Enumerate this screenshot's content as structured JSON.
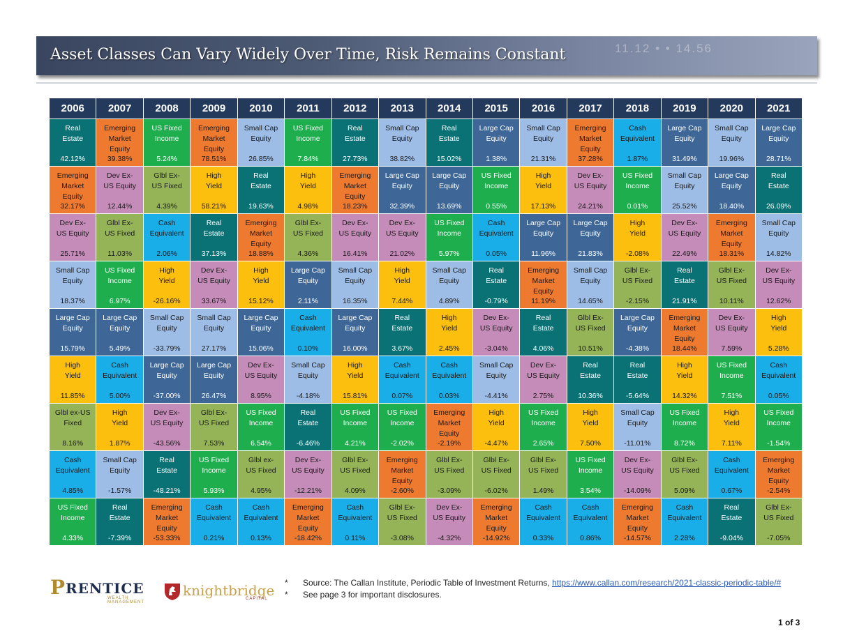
{
  "header": {
    "title": "Asset Classes Can Vary Widely Over Time,  Risk Remains Constant",
    "ticker_text": "11.12 • • 14.56"
  },
  "palette": {
    "Real Estate": {
      "bg": "#0a7275",
      "fg": "#ffffff"
    },
    "Emerging Market Equity": {
      "bg": "#ee7a30",
      "fg": "#1a1a1a"
    },
    "US Fixed Income": {
      "bg": "#1fae4e",
      "fg": "#ffffff"
    },
    "Small Cap Equity": {
      "bg": "#9dbde6",
      "fg": "#1a1a1a"
    },
    "Large Cap Equity": {
      "bg": "#3e6797",
      "fg": "#ffffff"
    },
    "Cash Equivalent": {
      "bg": "#19aee8",
      "fg": "#1a1a1a"
    },
    "High Yield": {
      "bg": "#fcbf0d",
      "fg": "#1a1a1a"
    },
    "Dev Ex-US Equity": {
      "bg": "#c58bb9",
      "fg": "#1a1a1a"
    },
    "Glbl Ex-US Fixed": {
      "bg": "#94b457",
      "fg": "#1a1a1a"
    }
  },
  "table": {
    "years": [
      "2006",
      "2007",
      "2008",
      "2009",
      "2010",
      "2011",
      "2012",
      "2013",
      "2014",
      "2015",
      "2016",
      "2017",
      "2018",
      "2019",
      "2020",
      "2021"
    ],
    "rows": [
      [
        {
          "key": "Real Estate",
          "label": "Real\nEstate",
          "value": "42.12%"
        },
        {
          "key": "Emerging Market Equity",
          "label": "Emerging\nMarket\nEquity",
          "value": "39.38%"
        },
        {
          "key": "US Fixed Income",
          "label": "US Fixed\nIncome",
          "value": "5.24%"
        },
        {
          "key": "Emerging Market Equity",
          "label": "Emerging\nMarket\nEquity",
          "value": "78.51%"
        },
        {
          "key": "Small Cap Equity",
          "label": "Small Cap\nEquity",
          "value": "26.85%"
        },
        {
          "key": "US Fixed Income",
          "label": "US Fixed\nIncome",
          "value": "7.84%"
        },
        {
          "key": "Real Estate",
          "label": "Real\nEstate",
          "value": "27.73%"
        },
        {
          "key": "Small Cap Equity",
          "label": "Small Cap\nEquity",
          "value": "38.82%"
        },
        {
          "key": "Real Estate",
          "label": "Real\nEstate",
          "value": "15.02%"
        },
        {
          "key": "Large Cap Equity",
          "label": "Large Cap\nEquity",
          "value": "1.38%"
        },
        {
          "key": "Small Cap Equity",
          "label": "Small Cap\nEquity",
          "value": "21.31%"
        },
        {
          "key": "Emerging Market Equity",
          "label": "Emerging\nMarket\nEquity",
          "value": "37.28%"
        },
        {
          "key": "Cash Equivalent",
          "label": "Cash\nEquivalent",
          "value": "1.87%"
        },
        {
          "key": "Large Cap Equity",
          "label": "Large Cap\nEquity",
          "value": "31.49%"
        },
        {
          "key": "Small Cap Equity",
          "label": "Small Cap\nEquity",
          "value": "19.96%"
        },
        {
          "key": "Large Cap Equity",
          "label": "Large Cap\nEquity",
          "value": "28.71%"
        }
      ],
      [
        {
          "key": "Emerging Market Equity",
          "label": "Emerging\nMarket\nEquity",
          "value": "32.17%"
        },
        {
          "key": "Dev Ex-US Equity",
          "label": "Dev Ex-\nUS Equity",
          "value": "12.44%"
        },
        {
          "key": "Glbl Ex-US Fixed",
          "label": "Glbl Ex-\nUS Fixed",
          "value": "4.39%"
        },
        {
          "key": "High Yield",
          "label": "High\nYield",
          "value": "58.21%"
        },
        {
          "key": "Real Estate",
          "label": "Real\nEstate",
          "value": "19.63%"
        },
        {
          "key": "High Yield",
          "label": "High\nYield",
          "value": "4.98%"
        },
        {
          "key": "Emerging Market Equity",
          "label": "Emerging\nMarket\nEquity",
          "value": "18.23%"
        },
        {
          "key": "Large Cap Equity",
          "label": "Large Cap\nEquity",
          "value": "32.39%"
        },
        {
          "key": "Large Cap Equity",
          "label": "Large Cap\nEquity",
          "value": "13.69%"
        },
        {
          "key": "US Fixed Income",
          "label": "US Fixed\nIncome",
          "value": "0.55%"
        },
        {
          "key": "High Yield",
          "label": "High\nYield",
          "value": "17.13%"
        },
        {
          "key": "Dev Ex-US Equity",
          "label": "Dev Ex-\nUS Equity",
          "value": "24.21%"
        },
        {
          "key": "US Fixed Income",
          "label": "US Fixed\nIncome",
          "value": "0.01%"
        },
        {
          "key": "Small Cap Equity",
          "label": "Small Cap\nEquity",
          "value": "25.52%"
        },
        {
          "key": "Large Cap Equity",
          "label": "Large Cap\nEquity",
          "value": "18.40%"
        },
        {
          "key": "Real Estate",
          "label": "Real\nEstate",
          "value": "26.09%"
        }
      ],
      [
        {
          "key": "Dev Ex-US Equity",
          "label": "Dev Ex-\nUS Equity",
          "value": "25.71%"
        },
        {
          "key": "Glbl Ex-US Fixed",
          "label": "Glbl Ex-\nUS Fixed",
          "value": "11.03%"
        },
        {
          "key": "Cash Equivalent",
          "label": "Cash\nEquivalent",
          "value": "2.06%"
        },
        {
          "key": "Real Estate",
          "label": "Real\nEstate",
          "value": "37.13%"
        },
        {
          "key": "Emerging Market Equity",
          "label": "Emerging\nMarket\nEquity",
          "value": "18.88%"
        },
        {
          "key": "Glbl Ex-US Fixed",
          "label": "Glbl Ex-\nUS Fixed",
          "value": "4.36%"
        },
        {
          "key": "Dev Ex-US Equity",
          "label": "Dev Ex-\nUS Equity",
          "value": "16.41%"
        },
        {
          "key": "Dev Ex-US Equity",
          "label": "Dev Ex-\nUS Equity",
          "value": "21.02%"
        },
        {
          "key": "US Fixed Income",
          "label": "US Fixed\nIncome",
          "value": "5.97%"
        },
        {
          "key": "Cash Equivalent",
          "label": "Cash\nEquivalent",
          "value": "0.05%"
        },
        {
          "key": "Large Cap Equity",
          "label": "Large Cap\nEquity",
          "value": "11.96%"
        },
        {
          "key": "Large Cap Equity",
          "label": "Large Cap\nEquity",
          "value": "21.83%"
        },
        {
          "key": "High Yield",
          "label": "High\nYield",
          "value": "-2.08%"
        },
        {
          "key": "Dev Ex-US Equity",
          "label": "Dev Ex-\nUS Equity",
          "value": "22.49%"
        },
        {
          "key": "Emerging Market Equity",
          "label": "Emerging\nMarket\nEquity",
          "value": "18.31%"
        },
        {
          "key": "Small Cap Equity",
          "label": "Small Cap\nEquity",
          "value": "14.82%"
        }
      ],
      [
        {
          "key": "Small Cap Equity",
          "label": "Small Cap\nEquity",
          "value": "18.37%"
        },
        {
          "key": "US Fixed Income",
          "label": "US Fixed\nIncome",
          "value": "6.97%"
        },
        {
          "key": "High Yield",
          "label": "High\nYield",
          "value": "-26.16%"
        },
        {
          "key": "Dev Ex-US Equity",
          "label": "Dev Ex-\nUS Equity",
          "value": "33.67%"
        },
        {
          "key": "High Yield",
          "label": "High\nYield",
          "value": "15.12%"
        },
        {
          "key": "Large Cap Equity",
          "label": "Large Cap\nEquity",
          "value": "2.11%"
        },
        {
          "key": "Small Cap Equity",
          "label": "Small Cap\nEquity",
          "value": "16.35%"
        },
        {
          "key": "High Yield",
          "label": "High\nYield",
          "value": "7.44%"
        },
        {
          "key": "Small Cap Equity",
          "label": "Small Cap\nEquity",
          "value": "4.89%"
        },
        {
          "key": "Real Estate",
          "label": "Real\nEstate",
          "value": "-0.79%"
        },
        {
          "key": "Emerging Market Equity",
          "label": "Emerging\nMarket\nEquity",
          "value": "11.19%"
        },
        {
          "key": "Small Cap Equity",
          "label": "Small Cap\nEquity",
          "value": "14.65%"
        },
        {
          "key": "Glbl Ex-US Fixed",
          "label": "Glbl Ex-\nUS Fixed",
          "value": "-2.15%"
        },
        {
          "key": "Real Estate",
          "label": "Real\nEstate",
          "value": "21.91%"
        },
        {
          "key": "Glbl Ex-US Fixed",
          "label": "Glbl Ex-\nUS Fixed",
          "value": "10.11%"
        },
        {
          "key": "Dev Ex-US Equity",
          "label": "Dev Ex-\nUS Equity",
          "value": "12.62%"
        }
      ],
      [
        {
          "key": "Large Cap Equity",
          "label": "Large Cap\nEquity",
          "value": "15.79%"
        },
        {
          "key": "Large Cap Equity",
          "label": "Large Cap\nEquity",
          "value": "5.49%"
        },
        {
          "key": "Small Cap Equity",
          "label": "Small Cap\nEquity",
          "value": "-33.79%"
        },
        {
          "key": "Small Cap Equity",
          "label": "Small Cap\nEquity",
          "value": "27.17%"
        },
        {
          "key": "Large Cap Equity",
          "label": "Large Cap\nEquity",
          "value": "15.06%"
        },
        {
          "key": "Cash Equivalent",
          "label": "Cash\nEquivalent",
          "value": "0.10%"
        },
        {
          "key": "Large Cap Equity",
          "label": "Large Cap\nEquity",
          "value": "16.00%"
        },
        {
          "key": "Real Estate",
          "label": "Real\nEstate",
          "value": "3.67%"
        },
        {
          "key": "High Yield",
          "label": "High\nYield",
          "value": "2.45%"
        },
        {
          "key": "Dev Ex-US Equity",
          "label": "Dev Ex-\nUS Equity",
          "value": "-3.04%"
        },
        {
          "key": "Real Estate",
          "label": "Real\nEstate",
          "value": "4.06%"
        },
        {
          "key": "Glbl Ex-US Fixed",
          "label": "Glbl Ex-\nUS Fixed",
          "value": "10.51%"
        },
        {
          "key": "Large Cap Equity",
          "label": "Large Cap\nEquity",
          "value": "-4.38%"
        },
        {
          "key": "Emerging Market Equity",
          "label": "Emerging\nMarket\nEquity",
          "value": "18.44%"
        },
        {
          "key": "Dev Ex-US Equity",
          "label": "Dev Ex-\nUS Equity",
          "value": "7.59%"
        },
        {
          "key": "High Yield",
          "label": "High\nYield",
          "value": "5.28%"
        }
      ],
      [
        {
          "key": "High Yield",
          "label": "High\nYield",
          "value": "11.85%"
        },
        {
          "key": "Cash Equivalent",
          "label": "Cash\nEquivalent",
          "value": "5.00%"
        },
        {
          "key": "Large Cap Equity",
          "label": "Large Cap\nEquity",
          "value": "-37.00%"
        },
        {
          "key": "Large Cap Equity",
          "label": "Large Cap\nEquity",
          "value": "26.47%"
        },
        {
          "key": "Dev Ex-US Equity",
          "label": "Dev Ex-\nUS Equity",
          "value": "8.95%"
        },
        {
          "key": "Small Cap Equity",
          "label": "Small Cap\nEquity",
          "value": "-4.18%"
        },
        {
          "key": "High Yield",
          "label": "High\nYield",
          "value": "15.81%"
        },
        {
          "key": "Cash Equivalent",
          "label": "Cash\nEquivalent",
          "value": "0.07%"
        },
        {
          "key": "Cash Equivalent",
          "label": "Cash\nEquivalent",
          "value": "0.03%"
        },
        {
          "key": "Small Cap Equity",
          "label": "Small Cap\nEquity",
          "value": "-4.41%"
        },
        {
          "key": "Dev Ex-US Equity",
          "label": "Dev Ex-\nUS Equity",
          "value": "2.75%"
        },
        {
          "key": "Real Estate",
          "label": "Real\nEstate",
          "value": "10.36%"
        },
        {
          "key": "Real Estate",
          "label": "Real\nEstate",
          "value": "-5.64%"
        },
        {
          "key": "High Yield",
          "label": "High\nYield",
          "value": "14.32%"
        },
        {
          "key": "US Fixed Income",
          "label": "US Fixed\nIncome",
          "value": "7.51%"
        },
        {
          "key": "Cash Equivalent",
          "label": "Cash\nEquivalent",
          "value": "0.05%"
        }
      ],
      [
        {
          "key": "Glbl Ex-US Fixed",
          "label": "Glbl ex-US\nFixed",
          "value": "8.16%"
        },
        {
          "key": "High Yield",
          "label": "High\nYield",
          "value": "1.87%"
        },
        {
          "key": "Dev Ex-US Equity",
          "label": "Dev Ex-\nUS Equity",
          "value": "-43.56%"
        },
        {
          "key": "Glbl Ex-US Fixed",
          "label": "Glbl Ex-\nUS Fixed",
          "value": "7.53%"
        },
        {
          "key": "US Fixed Income",
          "label": "US Fixed\nIncome",
          "value": "6.54%"
        },
        {
          "key": "Real Estate",
          "label": "Real\nEstate",
          "value": "-6.46%"
        },
        {
          "key": "US Fixed Income",
          "label": "US Fixed\nIncome",
          "value": "4.21%"
        },
        {
          "key": "US Fixed Income",
          "label": "US Fixed\nIncome",
          "value": "-2.02%"
        },
        {
          "key": "Emerging Market Equity",
          "label": "Emerging\nMarket\nEquity",
          "value": "-2.19%"
        },
        {
          "key": "High Yield",
          "label": "High\nYield",
          "value": "-4.47%"
        },
        {
          "key": "US Fixed Income",
          "label": "US Fixed\nIncome",
          "value": "2.65%"
        },
        {
          "key": "High Yield",
          "label": "High\nYield",
          "value": "7.50%"
        },
        {
          "key": "Small Cap Equity",
          "label": "Small Cap\nEquity",
          "value": "-11.01%"
        },
        {
          "key": "US Fixed Income",
          "label": "US Fixed\nIncome",
          "value": "8.72%"
        },
        {
          "key": "High Yield",
          "label": "High\nYield",
          "value": "7.11%"
        },
        {
          "key": "US Fixed Income",
          "label": "US Fixed\nIncome",
          "value": "-1.54%"
        }
      ],
      [
        {
          "key": "Cash Equivalent",
          "label": "Cash\nEquivalent",
          "value": "4.85%"
        },
        {
          "key": "Small Cap Equity",
          "label": "Small Cap\nEquity",
          "value": "-1.57%"
        },
        {
          "key": "Real Estate",
          "label": "Real\nEstate",
          "value": "-48.21%"
        },
        {
          "key": "US Fixed Income",
          "label": "US Fixed\nIncome",
          "value": "5.93%"
        },
        {
          "key": "Glbl Ex-US Fixed",
          "label": "Glbl ex-\nUS Fixed",
          "value": "4.95%"
        },
        {
          "key": "Dev Ex-US Equity",
          "label": "Dev Ex-\nUS Equity",
          "value": "-12.21%"
        },
        {
          "key": "Glbl Ex-US Fixed",
          "label": "Glbl Ex-\nUS Fixed",
          "value": "4.09%"
        },
        {
          "key": "Emerging Market Equity",
          "label": "Emerging\nMarket\nEquity",
          "value": "-2.60%"
        },
        {
          "key": "Glbl Ex-US Fixed",
          "label": "Glbl Ex-\nUS Fixed",
          "value": "-3.09%"
        },
        {
          "key": "Glbl Ex-US Fixed",
          "label": "Glbl Ex-\nUS Fixed",
          "value": "-6.02%"
        },
        {
          "key": "Glbl Ex-US Fixed",
          "label": "Glbl Ex-\nUS Fixed",
          "value": "1.49%"
        },
        {
          "key": "US Fixed Income",
          "label": "US Fixed\nIncome",
          "value": "3.54%"
        },
        {
          "key": "Dev Ex-US Equity",
          "label": "Dev Ex-\nUS Equity",
          "value": "-14.09%"
        },
        {
          "key": "Glbl Ex-US Fixed",
          "label": "Glbl Ex-\nUS Fixed",
          "value": "5.09%"
        },
        {
          "key": "Cash Equivalent",
          "label": "Cash\nEquivalent",
          "value": "0.67%"
        },
        {
          "key": "Emerging Market Equity",
          "label": "Emerging\nMarket\nEquity",
          "value": "-2.54%"
        }
      ],
      [
        {
          "key": "US Fixed Income",
          "label": "US Fixed\nIncome",
          "value": "4.33%"
        },
        {
          "key": "Real Estate",
          "label": "Real\nEstate",
          "value": "-7.39%"
        },
        {
          "key": "Emerging Market Equity",
          "label": "Emerging\nMarket\nEquity",
          "value": "-53.33%"
        },
        {
          "key": "Cash Equivalent",
          "label": "Cash\nEquivalent",
          "value": "0.21%"
        },
        {
          "key": "Cash Equivalent",
          "label": "Cash\nEquivalent",
          "value": "0.13%"
        },
        {
          "key": "Emerging Market Equity",
          "label": "Emerging\nMarket\nEquity",
          "value": "-18.42%"
        },
        {
          "key": "Cash Equivalent",
          "label": "Cash\nEquivalent",
          "value": "0.11%"
        },
        {
          "key": "Glbl Ex-US Fixed",
          "label": "Glbl Ex-\nUS Fixed",
          "value": "-3.08%"
        },
        {
          "key": "Dev Ex-US Equity",
          "label": "Dev Ex-\nUS Equity",
          "value": "-4.32%"
        },
        {
          "key": "Emerging Market Equity",
          "label": "Emerging\nMarket\nEquity",
          "value": "-14.92%"
        },
        {
          "key": "Cash Equivalent",
          "label": "Cash\nEquivalent",
          "value": "0.33%"
        },
        {
          "key": "Cash Equivalent",
          "label": "Cash\nEquivalent",
          "value": "0.86%"
        },
        {
          "key": "Emerging Market Equity",
          "label": "Emerging\nMarket\nEquity",
          "value": "-14.57%"
        },
        {
          "key": "Cash Equivalent",
          "label": "Cash\nEquivalent",
          "value": "2.28%"
        },
        {
          "key": "Real Estate",
          "label": "Real\nEstate",
          "value": "-9.04%"
        },
        {
          "key": "Glbl Ex-US Fixed",
          "label": "Glbl Ex-\nUS Fixed",
          "value": "-7.05%"
        }
      ]
    ]
  },
  "footer": {
    "logo_prentice": {
      "mark": "P",
      "name": "RENTICE",
      "sub": "WEALTH MANAGEMENT"
    },
    "logo_knightbridge": {
      "name": "knightbridge",
      "sub": "CAPITAL"
    },
    "source_prefix": "Source: The Callan Institute, Periodic Table of Investment Returns, ",
    "source_link": "https://www.callan.com/research/2021-classic-periodic-table/#",
    "disclosure": "See page 3 for important disclosures.",
    "bullet": "*",
    "page_number": "1 of 3"
  }
}
